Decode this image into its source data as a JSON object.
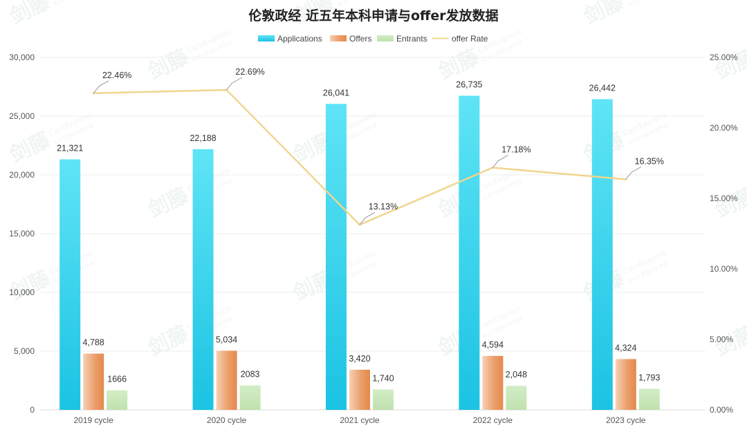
{
  "chart_data": {
    "type": "bar",
    "title": "伦敦政经 近五年本科申请与offer发放数据",
    "categories": [
      "2019 cycle",
      "2020 cycle",
      "2021 cycle",
      "2022 cycle",
      "2023 cycle"
    ],
    "series": [
      {
        "name": "Applications",
        "type": "bar",
        "axis": "left",
        "color": "#2dd0ec",
        "values": [
          21321,
          22188,
          26041,
          26735,
          26442
        ],
        "labels": [
          "21,321",
          "22,188",
          "26,041",
          "26,735",
          "26,442"
        ]
      },
      {
        "name": "Offers",
        "type": "bar",
        "axis": "left",
        "color": "#e8955c",
        "values": [
          4788,
          5034,
          3420,
          4594,
          4324
        ],
        "labels": [
          "4,788",
          "5,034",
          "3,420",
          "4,594",
          "4,324"
        ]
      },
      {
        "name": "Entrants",
        "type": "bar",
        "axis": "left",
        "color": "#c8e6b8",
        "values": [
          1666,
          2083,
          1740,
          2048,
          1793
        ],
        "labels": [
          "1666",
          "2083",
          "1,740",
          "2,048",
          "1,793"
        ]
      },
      {
        "name": "offer Rate",
        "type": "line",
        "axis": "right",
        "color": "#f0d58e",
        "values": [
          22.46,
          22.69,
          13.13,
          17.18,
          16.35
        ],
        "labels": [
          "22.46%",
          "22.69%",
          "13.13%",
          "17.18%",
          "16.35%"
        ]
      }
    ],
    "y_left": {
      "min": 0,
      "max": 30000,
      "ticks": [
        "0",
        "5,000",
        "10,000",
        "15,000",
        "20,000",
        "25,000",
        "30,000"
      ]
    },
    "y_right": {
      "min": 0,
      "max": 25,
      "ticks": [
        "0.00%",
        "5.00%",
        "10.00%",
        "15.00%",
        "20.00%",
        "25.00%"
      ]
    },
    "grid": true,
    "legend_position": "top-center"
  },
  "watermark": {
    "brand": "剑藤",
    "sub": "CamExpress",
    "tagline": "专注于英国大学申请"
  }
}
